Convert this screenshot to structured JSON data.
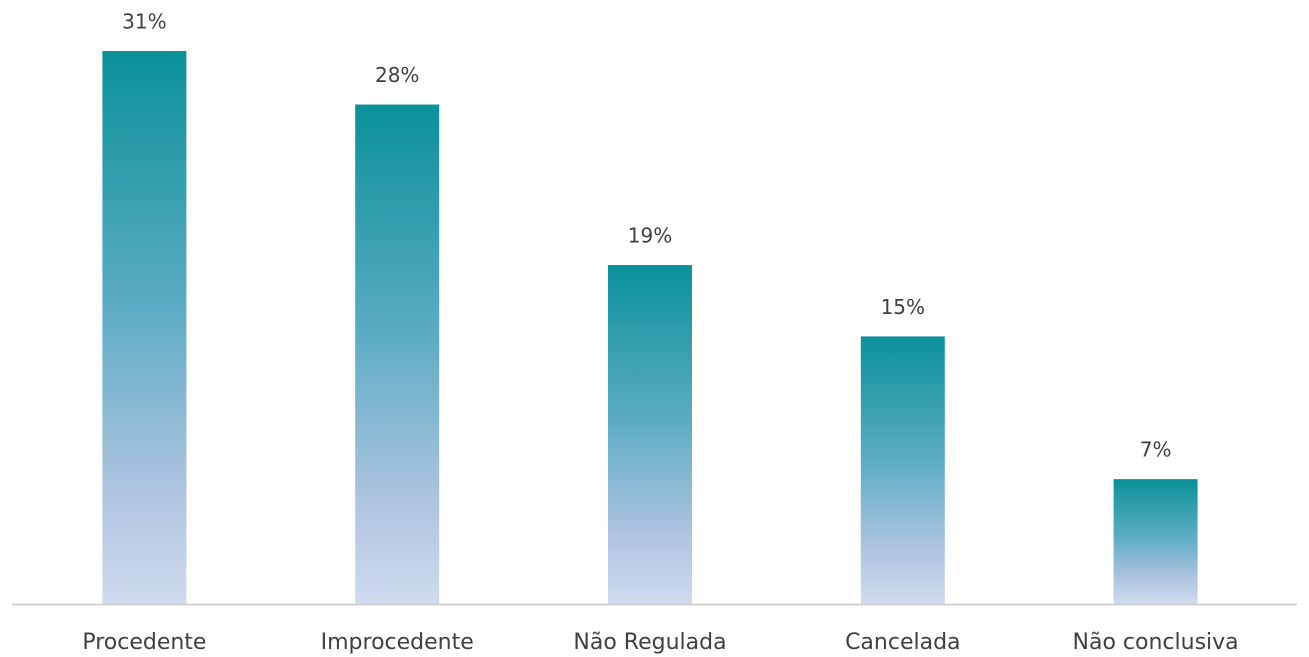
{
  "chart_data": {
    "type": "bar",
    "categories": [
      "Procedente",
      "Improcedente",
      "Não Regulada",
      "Cancelada",
      "Não conclusiva"
    ],
    "values": [
      31,
      28,
      19,
      15,
      7
    ],
    "value_labels": [
      "31%",
      "28%",
      "19%",
      "15%",
      "7%"
    ],
    "color": "#0a9199"
  }
}
